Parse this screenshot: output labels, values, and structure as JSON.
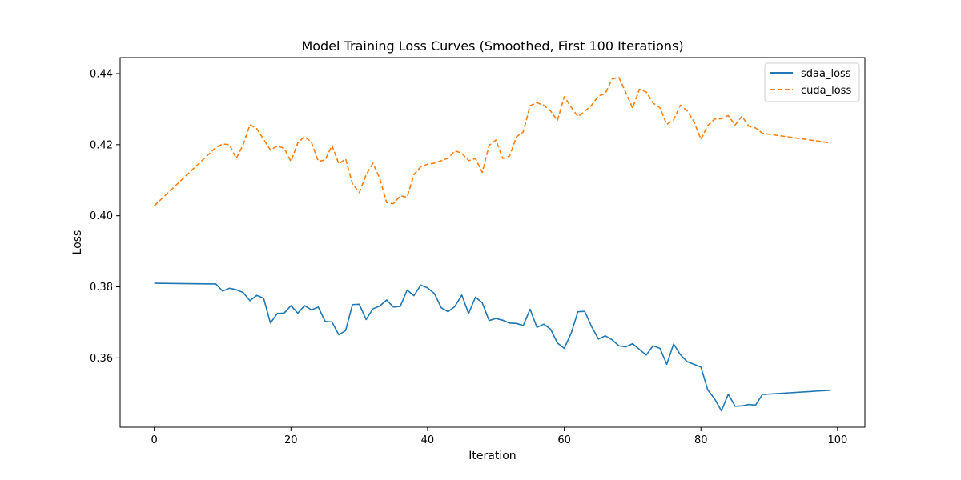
{
  "chart_data": {
    "type": "line",
    "title": "Model Training Loss Curves (Smoothed, First 100 Iterations)",
    "xlabel": "Iteration",
    "ylabel": "Loss",
    "xlim": [
      -5,
      104
    ],
    "ylim": [
      0.3405,
      0.4445
    ],
    "xticks": [
      0,
      20,
      40,
      60,
      80,
      100
    ],
    "yticks": [
      0.36,
      0.38,
      0.4,
      0.42,
      0.44
    ],
    "ytick_labels": [
      "0.36",
      "0.38",
      "0.40",
      "0.42",
      "0.44"
    ],
    "grid": false,
    "legend_position": "upper right",
    "series": [
      {
        "name": "sdaa_loss",
        "color": "#1f77b4",
        "style": "solid",
        "x": [
          0,
          9,
          10,
          11,
          12,
          13,
          14,
          15,
          16,
          17,
          18,
          19,
          20,
          21,
          22,
          23,
          24,
          25,
          26,
          27,
          28,
          29,
          30,
          31,
          32,
          33,
          34,
          35,
          36,
          37,
          38,
          39,
          40,
          41,
          42,
          43,
          44,
          45,
          46,
          47,
          48,
          49,
          50,
          51,
          52,
          53,
          54,
          55,
          56,
          57,
          58,
          59,
          60,
          61,
          62,
          63,
          64,
          65,
          66,
          67,
          68,
          69,
          70,
          71,
          72,
          73,
          74,
          75,
          76,
          77,
          78,
          79,
          80,
          81,
          82,
          83,
          84,
          85,
          86,
          87,
          88,
          89,
          99
        ],
        "y": [
          0.381,
          0.3808,
          0.3788,
          0.3796,
          0.3792,
          0.3784,
          0.3761,
          0.3776,
          0.3768,
          0.3698,
          0.3725,
          0.3726,
          0.3747,
          0.3726,
          0.3747,
          0.3735,
          0.3743,
          0.3703,
          0.3701,
          0.3665,
          0.3677,
          0.375,
          0.3751,
          0.3708,
          0.3738,
          0.3746,
          0.3763,
          0.3743,
          0.3745,
          0.3791,
          0.3775,
          0.3805,
          0.3797,
          0.3781,
          0.3741,
          0.373,
          0.3745,
          0.3777,
          0.3725,
          0.3771,
          0.3755,
          0.3705,
          0.3711,
          0.3706,
          0.3698,
          0.3697,
          0.3691,
          0.3737,
          0.3686,
          0.3695,
          0.3681,
          0.3642,
          0.3627,
          0.3669,
          0.373,
          0.3731,
          0.3688,
          0.3653,
          0.3662,
          0.3651,
          0.3634,
          0.3631,
          0.364,
          0.3624,
          0.3608,
          0.3634,
          0.3627,
          0.3582,
          0.3639,
          0.3609,
          0.3589,
          0.3582,
          0.3574,
          0.351,
          0.3485,
          0.3451,
          0.3498,
          0.3464,
          0.3465,
          0.3469,
          0.3467,
          0.3497,
          0.3509
        ]
      },
      {
        "name": "cuda_loss",
        "color": "#ff7f0e",
        "style": "dashed",
        "x": [
          0,
          9,
          10,
          11,
          12,
          13,
          14,
          15,
          16,
          17,
          18,
          19,
          20,
          21,
          22,
          23,
          24,
          25,
          26,
          27,
          28,
          29,
          30,
          31,
          32,
          33,
          34,
          35,
          36,
          37,
          38,
          39,
          40,
          41,
          42,
          43,
          44,
          45,
          46,
          47,
          48,
          49,
          50,
          51,
          52,
          53,
          54,
          55,
          56,
          57,
          58,
          59,
          60,
          61,
          62,
          63,
          64,
          65,
          66,
          67,
          68,
          69,
          70,
          71,
          72,
          73,
          74,
          75,
          76,
          77,
          78,
          79,
          80,
          81,
          82,
          83,
          84,
          85,
          86,
          87,
          88,
          89,
          99
        ],
        "y": [
          0.4028,
          0.4192,
          0.4202,
          0.42,
          0.4161,
          0.42,
          0.4256,
          0.4245,
          0.4215,
          0.4185,
          0.4196,
          0.419,
          0.4153,
          0.4205,
          0.4223,
          0.4207,
          0.4153,
          0.4157,
          0.4198,
          0.4146,
          0.416,
          0.409,
          0.4065,
          0.4115,
          0.4148,
          0.4105,
          0.4037,
          0.4034,
          0.4056,
          0.4052,
          0.4116,
          0.4138,
          0.4145,
          0.4148,
          0.4155,
          0.4162,
          0.4183,
          0.4176,
          0.4155,
          0.4161,
          0.4122,
          0.4198,
          0.4213,
          0.4161,
          0.4168,
          0.4222,
          0.4236,
          0.431,
          0.4318,
          0.4311,
          0.4295,
          0.4268,
          0.4335,
          0.4306,
          0.4279,
          0.4294,
          0.4311,
          0.4337,
          0.4344,
          0.4385,
          0.4389,
          0.4347,
          0.4303,
          0.4356,
          0.4348,
          0.4317,
          0.4304,
          0.4257,
          0.427,
          0.4311,
          0.4295,
          0.4264,
          0.4215,
          0.4254,
          0.4272,
          0.4273,
          0.4282,
          0.4255,
          0.428,
          0.4252,
          0.4247,
          0.4232,
          0.4205
        ]
      }
    ]
  }
}
